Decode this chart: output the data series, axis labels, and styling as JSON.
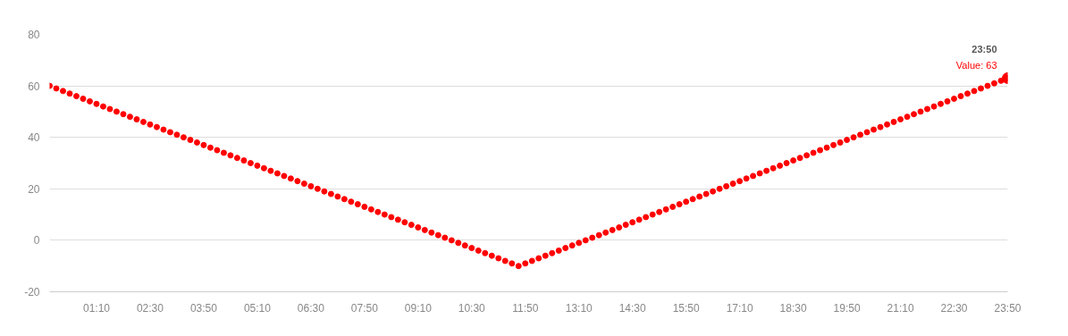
{
  "chart_data": {
    "type": "scatter",
    "marker": "circle",
    "grid": "y",
    "x": [
      0,
      0.1667,
      0.3333,
      0.5,
      0.6667,
      0.8333,
      1,
      1.1667,
      1.3333,
      1.5,
      1.6667,
      1.8333,
      2,
      2.1667,
      2.3333,
      2.5,
      2.6667,
      2.8333,
      3,
      3.1667,
      3.3333,
      3.5,
      3.6667,
      3.8333,
      4,
      4.1667,
      4.3333,
      4.5,
      4.6667,
      4.8333,
      5,
      5.1667,
      5.3333,
      5.5,
      5.6667,
      5.8333,
      6,
      6.1667,
      6.3333,
      6.5,
      6.6667,
      6.8333,
      7,
      7.1667,
      7.3333,
      7.5,
      7.6667,
      7.8333,
      8,
      8.1667,
      8.3333,
      8.5,
      8.6667,
      8.8333,
      9,
      9.1667,
      9.3333,
      9.5,
      9.6667,
      9.8333,
      10,
      10.1667,
      10.3333,
      10.5,
      10.6667,
      10.8333,
      11,
      11.1667,
      11.3333,
      11.5,
      11.6667,
      11.8333,
      12,
      12.1667,
      12.3333,
      12.5,
      12.6667,
      12.8333,
      13,
      13.1667,
      13.3333,
      13.5,
      13.6667,
      13.8333,
      14,
      14.1667,
      14.3333,
      14.5,
      14.6667,
      14.8333,
      15,
      15.1667,
      15.3333,
      15.5,
      15.6667,
      15.8333,
      16,
      16.1667,
      16.3333,
      16.5,
      16.6667,
      16.8333,
      17,
      17.1667,
      17.3333,
      17.5,
      17.6667,
      17.8333,
      18,
      18.1667,
      18.3333,
      18.5,
      18.6667,
      18.8333,
      19,
      19.1667,
      19.3333,
      19.5,
      19.6667,
      19.8333,
      20,
      20.1667,
      20.3333,
      20.5,
      20.6667,
      20.8333,
      21,
      21.1667,
      21.3333,
      21.5,
      21.6667,
      21.8333,
      22,
      22.1667,
      22.3333,
      22.5,
      22.6667,
      22.8333,
      23,
      23.1667,
      23.3333,
      23.5,
      23.6667,
      23.8333
    ],
    "series": [
      {
        "color": "#ff0000",
        "values": [
          60,
          59,
          58,
          57,
          56,
          55,
          54,
          53,
          52,
          51,
          50,
          49,
          48,
          47,
          46,
          45,
          44,
          43,
          42,
          41,
          40,
          39,
          38,
          37,
          36,
          35,
          34,
          33,
          32,
          31,
          30,
          29,
          28,
          27,
          26,
          25,
          24,
          23,
          22,
          21,
          20,
          19,
          18,
          17,
          16,
          15,
          14,
          13,
          12,
          11,
          10,
          9,
          8,
          7,
          6,
          5,
          4,
          3,
          2,
          1,
          0,
          -1,
          -2,
          -3,
          -4,
          -5,
          -6,
          -7,
          -8,
          -9,
          -10,
          -9,
          -8,
          -7,
          -6,
          -5,
          -4,
          -3,
          -2,
          -1,
          0,
          1,
          2,
          3,
          4,
          5,
          6,
          7,
          8,
          9,
          10,
          11,
          12,
          13,
          14,
          15,
          16,
          17,
          18,
          19,
          20,
          21,
          22,
          23,
          24,
          25,
          26,
          27,
          28,
          29,
          30,
          31,
          32,
          33,
          34,
          35,
          36,
          37,
          38,
          39,
          40,
          41,
          42,
          43,
          44,
          45,
          46,
          47,
          48,
          49,
          50,
          51,
          52,
          53,
          54,
          55,
          56,
          57,
          58,
          59,
          60,
          61,
          62,
          63
        ]
      }
    ],
    "xlim": [
      0,
      23.8333
    ],
    "ylim": [
      -20,
      80
    ],
    "xticks": [
      {
        "value": 1.1667,
        "label": "01:10"
      },
      {
        "value": 2.5,
        "label": "02:30"
      },
      {
        "value": 3.8333,
        "label": "03:50"
      },
      {
        "value": 5.1667,
        "label": "05:10"
      },
      {
        "value": 6.5,
        "label": "06:30"
      },
      {
        "value": 7.8333,
        "label": "07:50"
      },
      {
        "value": 9.1667,
        "label": "09:10"
      },
      {
        "value": 10.5,
        "label": "10:30"
      },
      {
        "value": 11.8333,
        "label": "11:50"
      },
      {
        "value": 13.1667,
        "label": "13:10"
      },
      {
        "value": 14.5,
        "label": "14:30"
      },
      {
        "value": 15.8333,
        "label": "15:50"
      },
      {
        "value": 17.1667,
        "label": "17:10"
      },
      {
        "value": 18.5,
        "label": "18:30"
      },
      {
        "value": 19.8333,
        "label": "19:50"
      },
      {
        "value": 21.1667,
        "label": "21:10"
      },
      {
        "value": 22.5,
        "label": "22:30"
      },
      {
        "value": 23.8333,
        "label": "23:50"
      }
    ],
    "yticks": [
      -20,
      0,
      20,
      40,
      60,
      80
    ],
    "annotations": [
      {
        "text": "23:50",
        "x": 23.8333,
        "y": 63
      },
      {
        "text": "Value: 63",
        "x": 23.8333,
        "y": 63
      }
    ]
  }
}
